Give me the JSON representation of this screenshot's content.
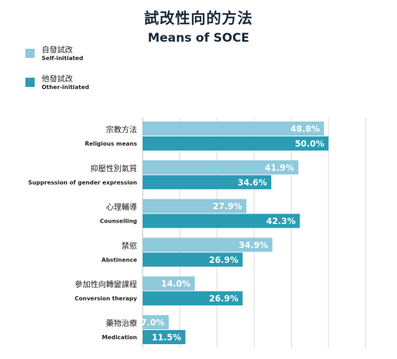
{
  "colors": {
    "self": "#8ec9dc",
    "other": "#2a9cb4",
    "grid": "#d9d9d9",
    "title": "#1b2a3a"
  },
  "title_zh": "試改性向的方法",
  "title_en": "Means of SOCE",
  "legend": [
    {
      "zh": "自發試改",
      "en": "Self-initiated",
      "color_key": "self"
    },
    {
      "zh": "他發試改",
      "en": "Other-initiated",
      "color_key": "other"
    }
  ],
  "chart_data": {
    "type": "bar",
    "orientation": "horizontal",
    "categories": [
      {
        "zh": "宗教方法",
        "en": "Religious means"
      },
      {
        "zh": "抑壓性別氣質",
        "en": "Suppression of gender expression"
      },
      {
        "zh": "心理輔導",
        "en": "Counselling"
      },
      {
        "zh": "禁慾",
        "en": "Abstinence"
      },
      {
        "zh": "參加性向轉變課程",
        "en": "Conversion therapy"
      },
      {
        "zh": "藥物治療",
        "en": "Medication"
      }
    ],
    "series": [
      {
        "name": "自發試改 Self-initiated",
        "values": [
          48.8,
          41.9,
          27.9,
          34.9,
          14.0,
          7.0
        ],
        "labels": [
          "48.8%",
          "41.9%",
          "27.9%",
          "34.9%",
          "14.0%",
          "7.0%"
        ]
      },
      {
        "name": "他發試改 Other-initiated",
        "values": [
          50.0,
          34.6,
          42.3,
          26.9,
          26.9,
          11.5
        ],
        "labels": [
          "50.0%",
          "34.6%",
          "42.3%",
          "26.9%",
          "26.9%",
          "11.5%"
        ]
      }
    ],
    "xlim": [
      0,
      60
    ],
    "grid": true,
    "legend_position": "top-left"
  }
}
